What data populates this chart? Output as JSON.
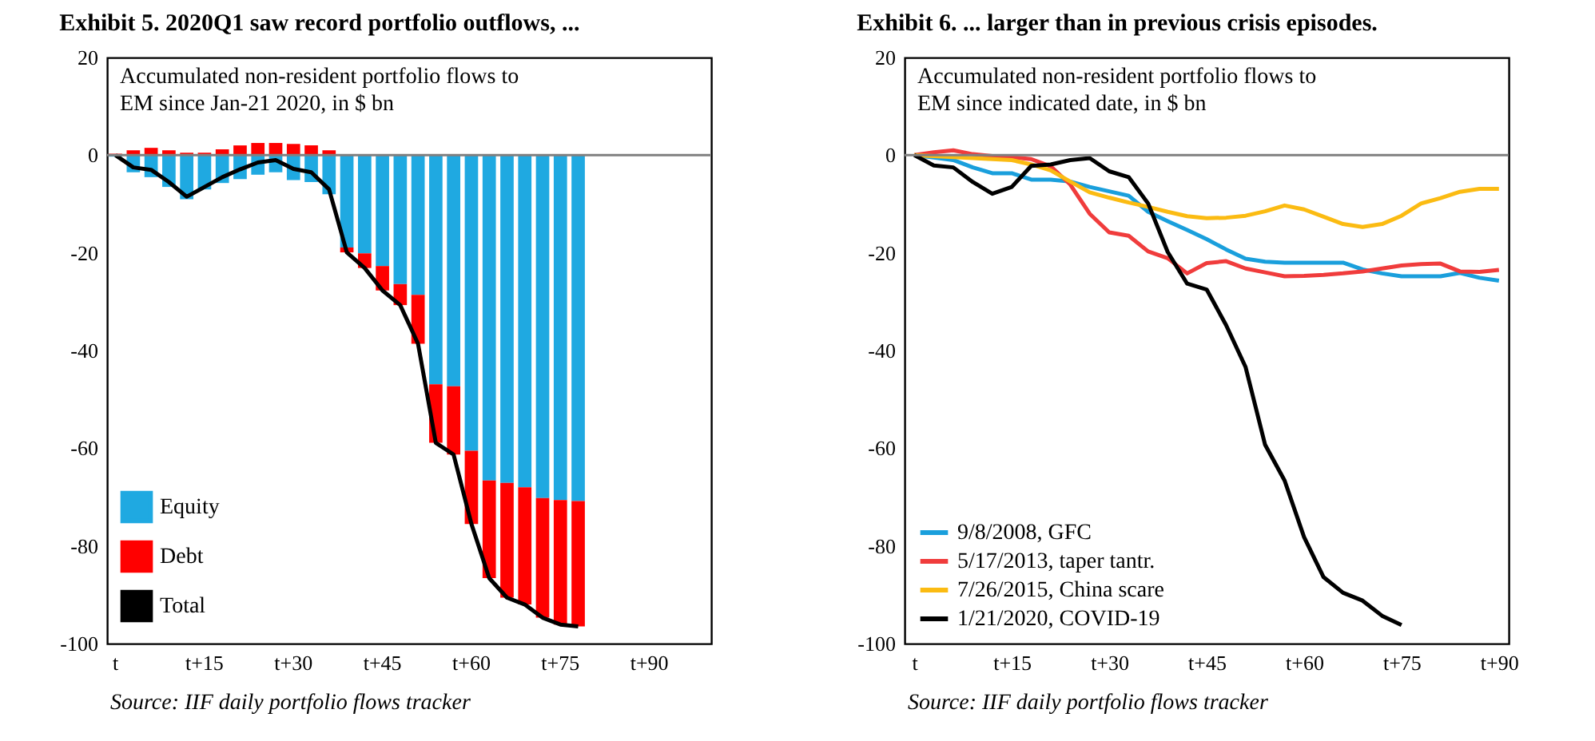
{
  "chart_data": [
    {
      "type": "bar",
      "title": "Exhibit 5. 2020Q1 saw record portfolio outflows, ...",
      "subtitle": "Accumulated non-resident portfolio flows to EM since Jan-21 2020, in $ bn",
      "annotations": [
        "Source: IIF daily portfolio flows tracker"
      ],
      "stacked": true,
      "legend": "bottom left",
      "categories": [
        "t",
        null,
        null,
        null,
        null,
        "t+15",
        null,
        null,
        null,
        null,
        "t+30",
        null,
        null,
        null,
        null,
        "t+45",
        null,
        null,
        null,
        null,
        "t+60",
        null,
        null,
        null,
        null,
        "t+75",
        null,
        null,
        null,
        null,
        "t+90",
        null,
        null,
        null
      ],
      "ylim": [
        -100,
        20
      ],
      "yticks": [
        -100,
        -80,
        -60,
        -40,
        -20,
        0,
        20
      ],
      "ref_lines": [
        {
          "axis": "y",
          "value": 0,
          "color": "#808080"
        }
      ],
      "series": [
        {
          "name": "Equity",
          "color": "#1fa9e1",
          "values": [
            -0.3,
            -3.5,
            -4.5,
            -6.5,
            -9,
            -7,
            -5.7,
            -4.9,
            -4,
            -3.5,
            -5.1,
            -5.5,
            -8,
            -18.9,
            -20.1,
            -22.7,
            -26.4,
            -28.6,
            -46.9,
            -47.3,
            -60.5,
            -66.6,
            -67.1,
            -68,
            -70.2,
            -70.6,
            -70.8,
            null,
            null,
            null,
            null,
            null,
            null,
            null
          ]
        },
        {
          "name": "Debt",
          "color": "#ff0000",
          "values": [
            0.3,
            1,
            1.5,
            1,
            0.5,
            0.5,
            1.2,
            2,
            2.5,
            2.5,
            2.3,
            2,
            1,
            -1,
            -3,
            -5,
            -4.3,
            -10,
            -12,
            -14,
            -15,
            -20,
            -23.5,
            -24,
            -24.5,
            -25.5,
            -25.7,
            null,
            null,
            null,
            null,
            null,
            null,
            null
          ]
        },
        {
          "name": "Total",
          "type": "line",
          "color": "#000000",
          "values": [
            0,
            -2.5,
            -3,
            -5.5,
            -8.5,
            -6.5,
            -4.5,
            -2.9,
            -1.5,
            -1,
            -2.8,
            -3.5,
            -7,
            -19.9,
            -23.1,
            -27.7,
            -30.7,
            -38.6,
            -58.9,
            -61.3,
            -75.5,
            -86.6,
            -90.6,
            -92,
            -94.7,
            -96.1,
            -96.5,
            null,
            null,
            null,
            null,
            null,
            null,
            null
          ]
        }
      ]
    },
    {
      "type": "line",
      "title": "Exhibit 6. ... larger than in previous crisis episodes.",
      "subtitle": "Accumulated non-resident portfolio flows to EM since indicated date, in $ bn",
      "annotations": [
        "Source: IIF daily portfolio flows tracker"
      ],
      "legend": "bottom left",
      "categories": [
        "t",
        null,
        null,
        null,
        null,
        "t+15",
        null,
        null,
        null,
        null,
        "t+30",
        null,
        null,
        null,
        null,
        "t+45",
        null,
        null,
        null,
        null,
        "t+60",
        null,
        null,
        null,
        null,
        "t+75",
        null,
        null,
        null,
        null,
        "t+90"
      ],
      "ylim": [
        -100,
        20
      ],
      "yticks": [
        -100,
        -80,
        -60,
        -40,
        -20,
        0,
        20
      ],
      "ref_lines": [
        {
          "axis": "y",
          "value": 0,
          "color": "#808080"
        }
      ],
      "series": [
        {
          "name": "9/8/2008, GFC",
          "color": "#1a9fdc",
          "values": [
            0,
            -0.5,
            -1,
            -2.5,
            -3.7,
            -3.7,
            -5,
            -5,
            -5.4,
            -6.5,
            -7.4,
            -8.3,
            -11.6,
            -13.5,
            -15.3,
            -17.2,
            -19.3,
            -21.2,
            -21.8,
            -22,
            -22,
            -22,
            -22,
            -23.4,
            -24.2,
            -24.8,
            -24.8,
            -24.8,
            -24.1,
            -25.1,
            -25.7
          ]
        },
        {
          "name": "5/17/2013, taper tantr.",
          "color": "#f03c3c",
          "values": [
            0,
            0.6,
            1,
            0.2,
            -0.2,
            -0.4,
            -0.8,
            -2.3,
            -6,
            -12,
            -15.8,
            -16.5,
            -19.7,
            -21.1,
            -24.2,
            -22.1,
            -21.7,
            -23.2,
            -24,
            -24.8,
            -24.7,
            -24.5,
            -24.2,
            -23.8,
            -23.2,
            -22.6,
            -22.3,
            -22.2,
            -23.8,
            -23.9,
            -23.5
          ]
        },
        {
          "name": "7/26/2015, China scare",
          "color": "#fbbb12",
          "values": [
            0,
            -0.2,
            -0.4,
            -0.6,
            -0.8,
            -1,
            -1.9,
            -3.1,
            -5.4,
            -7.6,
            -8.7,
            -9.7,
            -10.6,
            -11.6,
            -12.5,
            -12.9,
            -12.8,
            -12.4,
            -11.5,
            -10.3,
            -11.1,
            -12.6,
            -14.1,
            -14.7,
            -14.1,
            -12.4,
            -9.9,
            -8.8,
            -7.5,
            -6.9,
            -6.9
          ]
        },
        {
          "name": "1/21/2020, COVID-19",
          "color": "#000000",
          "values": [
            0,
            -2.1,
            -2.5,
            -5.5,
            -7.9,
            -6.5,
            -2.2,
            -1.9,
            -1,
            -0.6,
            -3.3,
            -4.5,
            -9.9,
            -19.8,
            -26.3,
            -27.5,
            -34.8,
            -43.4,
            -59.3,
            -66.6,
            -78.2,
            -86.4,
            -89.6,
            -91.2,
            -94.3,
            -96.2,
            null,
            null,
            null,
            null,
            null
          ]
        }
      ]
    }
  ]
}
